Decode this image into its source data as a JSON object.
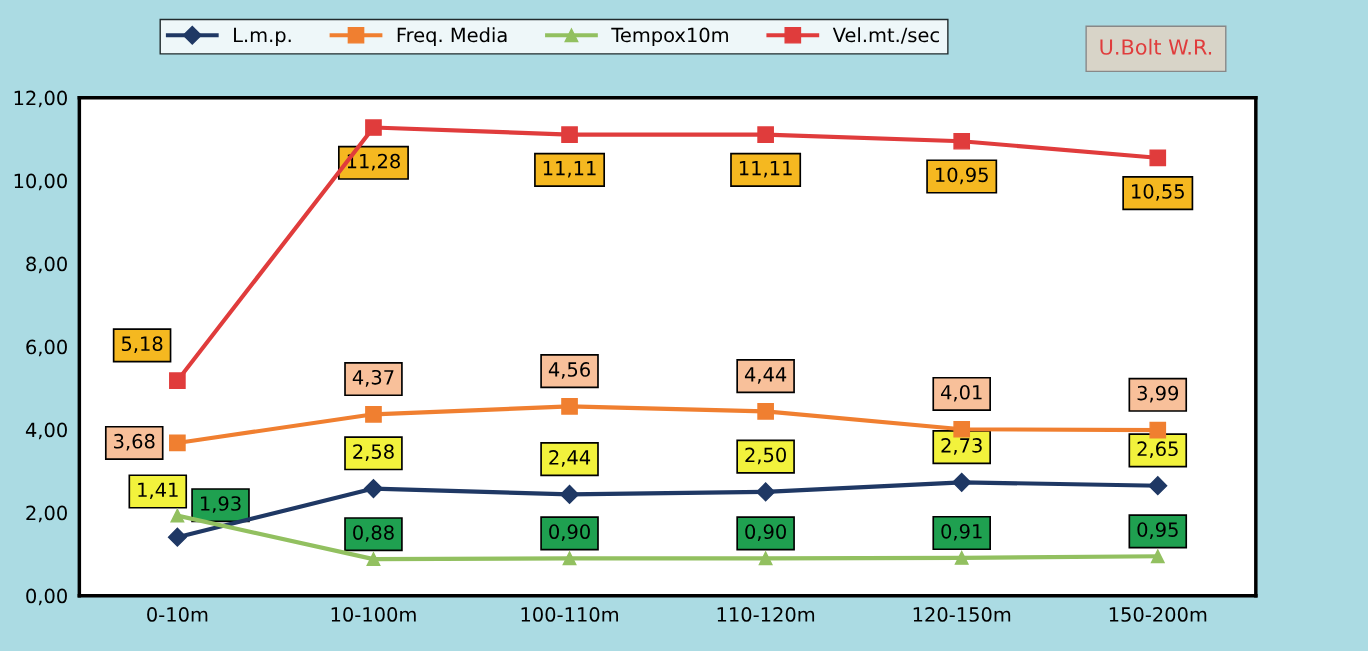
{
  "chart_data": {
    "type": "line",
    "subtitle": "U.Bolt W.R.",
    "categories": [
      "0-10m",
      "10-100m",
      "100-110m",
      "110-120m",
      "120-150m",
      "150-200m"
    ],
    "ylim": [
      0,
      12
    ],
    "yticks": [
      {
        "value": 0,
        "label": "0,00"
      },
      {
        "value": 2,
        "label": "2,00"
      },
      {
        "value": 4,
        "label": "4,00"
      },
      {
        "value": 6,
        "label": "6,00"
      },
      {
        "value": 8,
        "label": "8,00"
      },
      {
        "value": 10,
        "label": "10,00"
      },
      {
        "value": 12,
        "label": "12,00"
      }
    ],
    "grid": false,
    "legend": "top",
    "line_style": "solid",
    "series": [
      {
        "name": "L.m.p.",
        "color": "#1f3864",
        "marker": "diamond",
        "values": [
          1.41,
          2.58,
          2.44,
          2.5,
          2.73,
          2.65
        ],
        "value_labels": [
          "1,41",
          "2,58",
          "2,44",
          "2,50",
          "2,73",
          "2,65"
        ]
      },
      {
        "name": "Freq. Media",
        "color": "#f07f30",
        "marker": "square",
        "values": [
          3.68,
          4.37,
          4.56,
          4.44,
          4.01,
          3.99
        ],
        "value_labels": [
          "3,68",
          "4,37",
          "4,56",
          "4,44",
          "4,01",
          "3,99"
        ]
      },
      {
        "name": "Tempox10m",
        "color": "#92c060",
        "marker": "triangle",
        "values": [
          1.93,
          0.88,
          0.9,
          0.9,
          0.91,
          0.95
        ],
        "value_labels": [
          "1,93",
          "0,88",
          "0,90",
          "0,90",
          "0,91",
          "0,95"
        ]
      },
      {
        "name": "Vel.mt./sec",
        "color": "#e03c3c",
        "marker": "square",
        "values": [
          5.18,
          11.28,
          11.11,
          11.11,
          10.95,
          10.55
        ],
        "value_labels": [
          "5,18",
          "11,28",
          "11,11",
          "11,11",
          "10,95",
          "10,55"
        ]
      }
    ]
  }
}
